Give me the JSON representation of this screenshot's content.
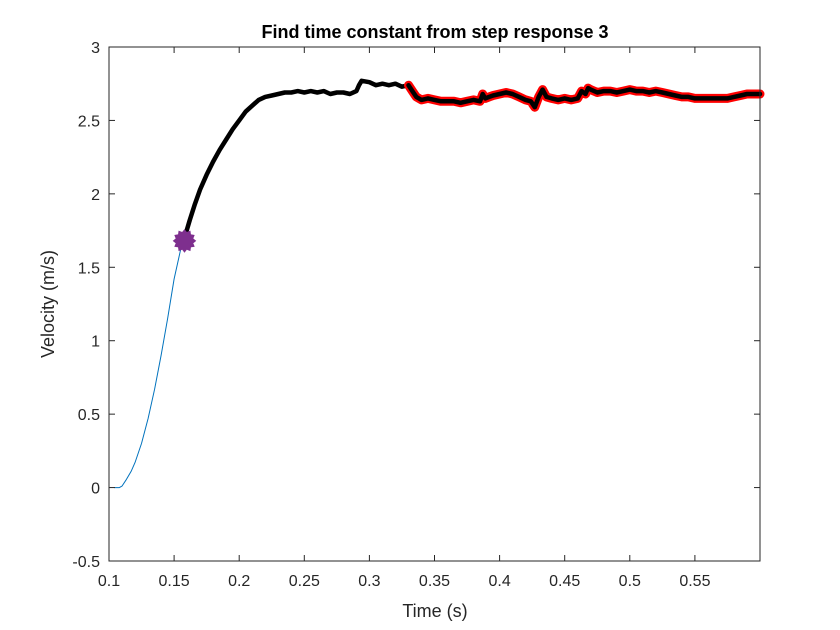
{
  "chart_data": {
    "type": "line",
    "title": "Find time constant from step response 3",
    "xlabel": "Time (s)",
    "ylabel": "Velocity (m/s)",
    "xlim": [
      0.1,
      0.6
    ],
    "ylim": [
      -0.5,
      3
    ],
    "xticks": [
      0.1,
      0.15,
      0.2,
      0.25,
      0.3,
      0.35,
      0.4,
      0.45,
      0.5,
      0.55
    ],
    "xtick_labels": [
      "0.1",
      "0.15",
      "0.2",
      "0.25",
      "0.3",
      "0.35",
      "0.4",
      "0.45",
      "0.5",
      "0.55"
    ],
    "yticks": [
      -0.5,
      0,
      0.5,
      1,
      1.5,
      2,
      2.5,
      3
    ],
    "ytick_labels": [
      "-0.5",
      "0",
      "0.5",
      "1",
      "1.5",
      "2",
      "2.5",
      "3"
    ],
    "grid": false,
    "legend": "none",
    "series": [
      {
        "role": "full-response",
        "style": "thin",
        "color": "#0072BD",
        "x": [
          0.104,
          0.108,
          0.11,
          0.113,
          0.117,
          0.12,
          0.125,
          0.13,
          0.135,
          0.14,
          0.145,
          0.15,
          0.155,
          0.158
        ],
        "y": [
          0.0,
          0.0,
          0.01,
          0.05,
          0.11,
          0.17,
          0.3,
          0.47,
          0.67,
          0.9,
          1.15,
          1.42,
          1.62,
          1.7
        ]
      },
      {
        "role": "fit-window",
        "style": "thick",
        "color": "#000000",
        "x": [
          0.158,
          0.162,
          0.166,
          0.17,
          0.175,
          0.18,
          0.185,
          0.19,
          0.195,
          0.2,
          0.205,
          0.21,
          0.215,
          0.22,
          0.225,
          0.23,
          0.235,
          0.24,
          0.245,
          0.25,
          0.255,
          0.26,
          0.265,
          0.27,
          0.275,
          0.28,
          0.285,
          0.29,
          0.292,
          0.294,
          0.3,
          0.305,
          0.31,
          0.315,
          0.32,
          0.325,
          0.33
        ],
        "y": [
          1.7,
          1.82,
          1.93,
          2.03,
          2.13,
          2.22,
          2.3,
          2.37,
          2.44,
          2.5,
          2.56,
          2.6,
          2.64,
          2.66,
          2.67,
          2.68,
          2.69,
          2.69,
          2.7,
          2.69,
          2.7,
          2.69,
          2.7,
          2.68,
          2.69,
          2.69,
          2.68,
          2.7,
          2.74,
          2.77,
          2.76,
          2.74,
          2.75,
          2.74,
          2.75,
          2.73,
          2.74
        ]
      },
      {
        "role": "steady-state",
        "style": "outlined",
        "color": "#000000",
        "outline": "#FF0000",
        "x": [
          0.33,
          0.333,
          0.336,
          0.34,
          0.345,
          0.35,
          0.355,
          0.36,
          0.365,
          0.37,
          0.375,
          0.38,
          0.385,
          0.387,
          0.389,
          0.392,
          0.395,
          0.4,
          0.405,
          0.41,
          0.415,
          0.42,
          0.424,
          0.427,
          0.43,
          0.433,
          0.436,
          0.44,
          0.445,
          0.45,
          0.455,
          0.46,
          0.463,
          0.466,
          0.468,
          0.47,
          0.475,
          0.48,
          0.485,
          0.49,
          0.495,
          0.5,
          0.505,
          0.51,
          0.515,
          0.52,
          0.525,
          0.53,
          0.535,
          0.54,
          0.545,
          0.55,
          0.555,
          0.56,
          0.565,
          0.57,
          0.575,
          0.58,
          0.585,
          0.59,
          0.595,
          0.6
        ],
        "y": [
          2.74,
          2.7,
          2.66,
          2.64,
          2.65,
          2.64,
          2.63,
          2.63,
          2.63,
          2.62,
          2.63,
          2.64,
          2.63,
          2.68,
          2.65,
          2.66,
          2.67,
          2.68,
          2.69,
          2.68,
          2.66,
          2.64,
          2.63,
          2.59,
          2.66,
          2.71,
          2.66,
          2.65,
          2.64,
          2.65,
          2.64,
          2.65,
          2.7,
          2.68,
          2.72,
          2.71,
          2.69,
          2.7,
          2.7,
          2.69,
          2.7,
          2.71,
          2.7,
          2.7,
          2.69,
          2.7,
          2.69,
          2.68,
          2.67,
          2.66,
          2.66,
          2.65,
          2.65,
          2.65,
          2.65,
          2.65,
          2.65,
          2.66,
          2.67,
          2.68,
          2.68,
          2.68
        ]
      }
    ],
    "markers": [
      {
        "label": "time constant point",
        "x": 0.158,
        "y": 1.68,
        "color": "#7E2F8E"
      }
    ]
  }
}
